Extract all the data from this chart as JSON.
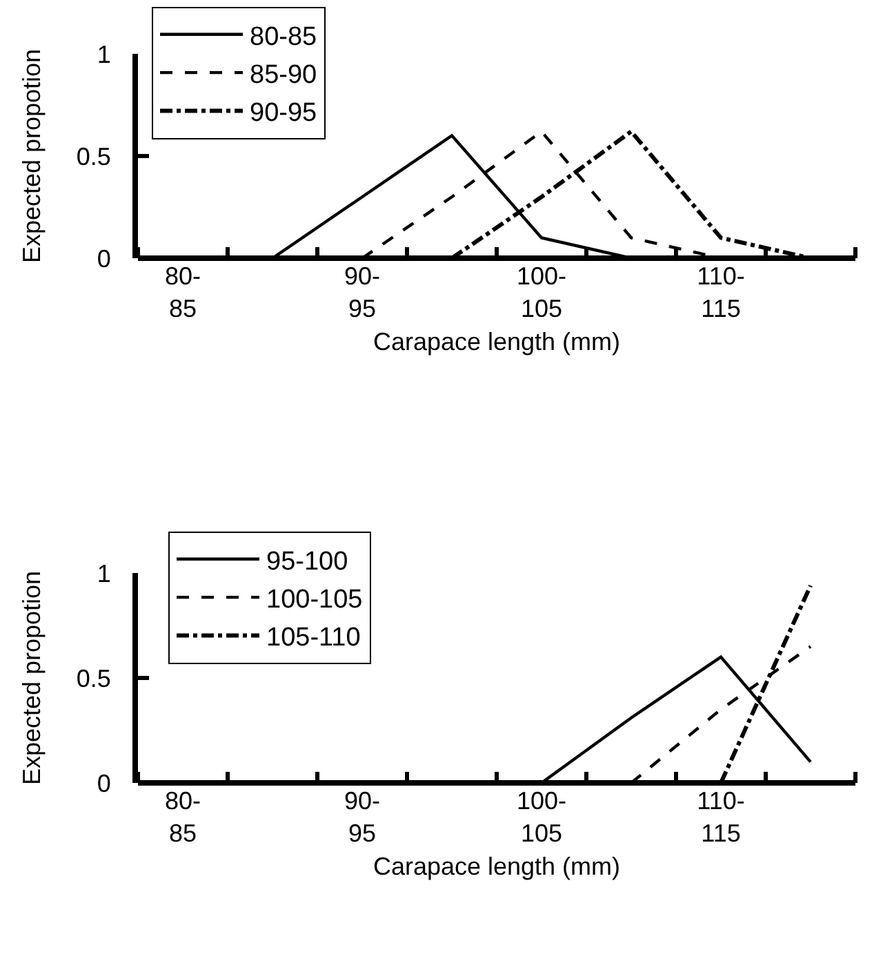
{
  "chart_data": [
    {
      "type": "line",
      "xlabel": "Carapace length (mm)",
      "ylabel": "Expected propotion",
      "categories": [
        "80-85",
        null,
        "90-95",
        null,
        "100-105",
        null,
        "110-115",
        null
      ],
      "ylim": [
        0,
        1
      ],
      "yticks": [
        0,
        0.5,
        1
      ],
      "legend": "top left",
      "marker": "none",
      "series": [
        {
          "name": "80-85",
          "color": "#000000",
          "line_style": "solid",
          "values": [
            null,
            0,
            0.3,
            0.6,
            0.1,
            0,
            null,
            null
          ]
        },
        {
          "name": "85-90",
          "color": "#000000",
          "line_style": "dashed",
          "values": [
            null,
            null,
            0,
            0.3,
            0.62,
            0.1,
            0,
            null
          ]
        },
        {
          "name": "90-95",
          "color": "#000000",
          "line_style": "dashdot",
          "values": [
            null,
            null,
            null,
            0,
            0.3,
            0.62,
            0.1,
            0
          ]
        }
      ]
    },
    {
      "type": "line",
      "xlabel": "Carapace length (mm)",
      "ylabel": "Expected propotion",
      "categories": [
        "80-85",
        null,
        "90-95",
        null,
        "100-105",
        null,
        "110-115",
        null
      ],
      "ylim": [
        0,
        1
      ],
      "yticks": [
        0,
        0.5,
        1
      ],
      "legend": "top left",
      "marker": "none",
      "series": [
        {
          "name": "95-100",
          "color": "#000000",
          "line_style": "solid",
          "values": [
            null,
            null,
            null,
            null,
            0,
            0.31,
            0.6,
            0.1
          ]
        },
        {
          "name": "100-105",
          "color": "#000000",
          "line_style": "dashed",
          "values": [
            null,
            null,
            null,
            null,
            null,
            0,
            0.35,
            0.65
          ]
        },
        {
          "name": "105-110",
          "color": "#000000",
          "line_style": "dashdot",
          "values": [
            null,
            null,
            null,
            null,
            null,
            null,
            0,
            0.94
          ]
        }
      ]
    }
  ]
}
